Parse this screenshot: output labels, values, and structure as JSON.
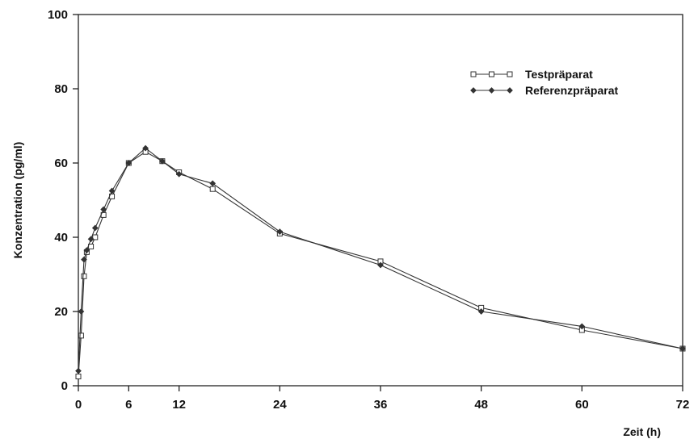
{
  "chart_data": {
    "type": "line",
    "title": "",
    "xlabel": "Zeit (h)",
    "ylabel": "Konzentration (pg/ml)",
    "xlim": [
      0,
      72
    ],
    "ylim": [
      0,
      100
    ],
    "xticks": [
      0,
      6,
      12,
      24,
      36,
      48,
      60,
      72
    ],
    "yticks": [
      0,
      20,
      40,
      60,
      80,
      100
    ],
    "grid": false,
    "legend_position": "top-right",
    "series": [
      {
        "name": "Testpräparat",
        "marker": "square",
        "x": [
          0,
          0.33,
          0.67,
          1,
          1.5,
          2,
          3,
          4,
          6,
          8,
          10,
          12,
          16,
          24,
          36,
          48,
          60,
          72
        ],
        "y": [
          2.5,
          13.5,
          29.5,
          36,
          37.5,
          40,
          46,
          51,
          60,
          63,
          60.5,
          57.5,
          53,
          41,
          33.5,
          21,
          15,
          10
        ]
      },
      {
        "name": "Referenzpräparat",
        "marker": "diamond",
        "x": [
          0,
          0.33,
          0.67,
          1,
          1.5,
          2,
          3,
          4,
          6,
          8,
          10,
          12,
          16,
          24,
          36,
          48,
          60,
          72
        ],
        "y": [
          4,
          20,
          34,
          36.5,
          39.5,
          42.5,
          47.5,
          52.5,
          60,
          64,
          60.5,
          57,
          54.5,
          41.5,
          32.5,
          20,
          16,
          10
        ]
      }
    ]
  }
}
